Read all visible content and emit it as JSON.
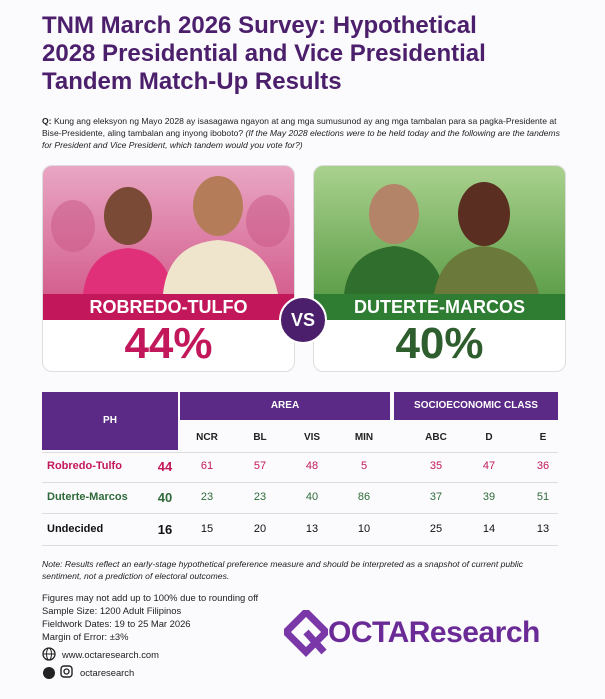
{
  "title": [
    "TNM March 2026 Survey: Hypothetical",
    "2028 Presidential and Vice Presidential",
    "Tandem Match-Up Results"
  ],
  "question": {
    "label": "Q:",
    "tagalog": "Kung ang eleksyon ng Mayo 2028 ay isasagawa ngayon at ang mga sumusunod ay ang mga tambalan para sa pagka-Presidente at Bise-Presidente, aling tambalan ang inyong iboboto?",
    "english": "(If the May 2028 elections were to be held today and the following are the tandems for President and Vice President, which tandem would you vote for?)"
  },
  "tandems": [
    {
      "name": "ROBREDO-TULFO",
      "result": "44%"
    },
    {
      "name": "DUTERTE-MARCOS",
      "result": "40%"
    }
  ],
  "vs": "VS",
  "table": {
    "corner": "PH",
    "groups": [
      "AREA",
      "SOCIOECONOMIC CLASS"
    ],
    "columns": [
      "NCR",
      "BL",
      "VIS",
      "MIN",
      "ABC",
      "D",
      "E"
    ],
    "rows": [
      {
        "label": "Robredo-Tulfo",
        "ph": 44,
        "values": [
          61,
          57,
          48,
          5,
          35,
          47,
          36
        ]
      },
      {
        "label": "Duterte-Marcos",
        "ph": 40,
        "values": [
          23,
          23,
          40,
          86,
          37,
          39,
          51
        ]
      },
      {
        "label": "Undecided",
        "ph": 16,
        "values": [
          15,
          20,
          13,
          10,
          25,
          14,
          13
        ]
      }
    ]
  },
  "note": "Note: Results reflect an early-stage hypothetical preference measure and should be interpreted as a snapshot of current public sentiment, not a prediction of electoral outcomes.",
  "details": [
    "Figures may not add up to 100% due to rounding off",
    "Sample Size: 1200 Adult Filipinos",
    "Fieldwork Dates: 19 to 25 Mar 2026",
    "Margin of Error: ±3%"
  ],
  "logo": "OCTAResearch",
  "contacts": [
    "www.octaresearch.com",
    "octaresearch"
  ]
}
